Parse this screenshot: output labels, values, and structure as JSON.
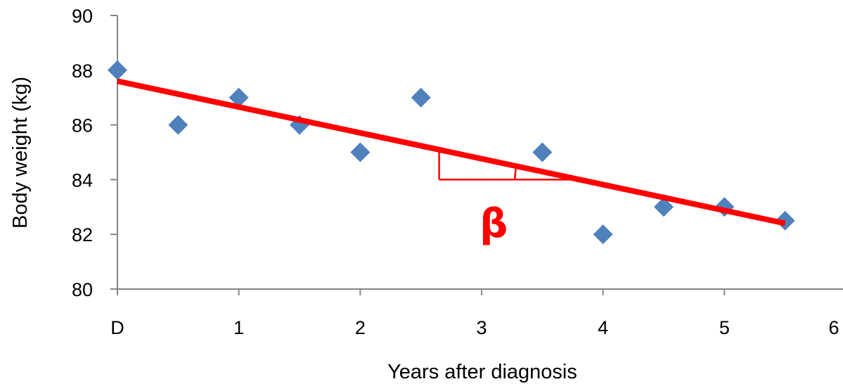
{
  "chart_data": {
    "type": "scatter",
    "title": "",
    "xlabel": "Years after diagnosis",
    "ylabel": "Body weight (kg)",
    "xlim": [
      0,
      6
    ],
    "ylim": [
      80,
      90
    ],
    "x_ticks": [
      {
        "value": 0,
        "label": "D"
      },
      {
        "value": 1,
        "label": "1"
      },
      {
        "value": 2,
        "label": "2"
      },
      {
        "value": 3,
        "label": "3"
      },
      {
        "value": 4,
        "label": "4"
      },
      {
        "value": 5,
        "label": "5"
      },
      {
        "value": 6,
        "label": "6"
      }
    ],
    "y_ticks": [
      {
        "value": 80,
        "label": "80"
      },
      {
        "value": 82,
        "label": "82"
      },
      {
        "value": 84,
        "label": "84"
      },
      {
        "value": 86,
        "label": "86"
      },
      {
        "value": 88,
        "label": "88"
      },
      {
        "value": 90,
        "label": "90"
      }
    ],
    "grid": false,
    "legend": "none",
    "series": [
      {
        "marker": "diamond",
        "color": "#4F81BD",
        "points": [
          {
            "x": 0,
            "y": 88
          },
          {
            "x": 0.5,
            "y": 86
          },
          {
            "x": 1,
            "y": 87
          },
          {
            "x": 1.5,
            "y": 86
          },
          {
            "x": 2,
            "y": 85
          },
          {
            "x": 2.5,
            "y": 87
          },
          {
            "x": 3.5,
            "y": 85
          },
          {
            "x": 4,
            "y": 82
          },
          {
            "x": 4.5,
            "y": 83
          },
          {
            "x": 5,
            "y": 83
          },
          {
            "x": 5.5,
            "y": 82.5
          }
        ]
      }
    ],
    "trendline": {
      "color": "#FF0000",
      "start": {
        "x": 0,
        "y": 87.6
      },
      "end": {
        "x": 5.5,
        "y": 82.4
      }
    },
    "slope_annotation": {
      "label": "β",
      "color": "#FF0000",
      "corner": {
        "x": 2.65,
        "y": 84
      },
      "run_end": {
        "x": 3.75,
        "y": 84
      }
    }
  }
}
